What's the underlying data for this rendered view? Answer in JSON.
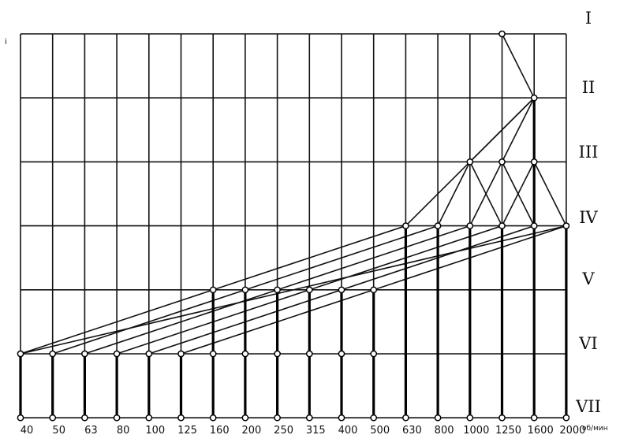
{
  "corner_mark": "i",
  "unit": "об/мин",
  "levels": [
    "I",
    "II",
    "III",
    "IV",
    "V",
    "VI",
    "VII"
  ],
  "speeds": [
    "40",
    "50",
    "63",
    "80",
    "100",
    "125",
    "160",
    "200",
    "250",
    "315",
    "400",
    "500",
    "630",
    "800",
    "1000",
    "1250",
    "1600",
    "2000"
  ],
  "nodes": [
    {
      "speed": 15,
      "level": 0
    },
    {
      "speed": 16,
      "level": 1
    },
    {
      "speed": 14,
      "level": 2
    },
    {
      "speed": 15,
      "level": 2
    },
    {
      "speed": 16,
      "level": 2
    },
    {
      "speed": 12,
      "level": 3
    },
    {
      "speed": 13,
      "level": 3
    },
    {
      "speed": 14,
      "level": 3
    },
    {
      "speed": 15,
      "level": 3
    },
    {
      "speed": 16,
      "level": 3
    },
    {
      "speed": 17,
      "level": 3
    },
    {
      "speed": 6,
      "level": 4
    },
    {
      "speed": 7,
      "level": 4
    },
    {
      "speed": 8,
      "level": 4
    },
    {
      "speed": 9,
      "level": 4
    },
    {
      "speed": 10,
      "level": 4
    },
    {
      "speed": 11,
      "level": 4
    },
    {
      "speed": 0,
      "level": 5
    },
    {
      "speed": 1,
      "level": 5
    },
    {
      "speed": 2,
      "level": 5
    },
    {
      "speed": 3,
      "level": 5
    },
    {
      "speed": 4,
      "level": 5
    },
    {
      "speed": 5,
      "level": 5
    },
    {
      "speed": 6,
      "level": 5
    },
    {
      "speed": 7,
      "level": 5
    },
    {
      "speed": 8,
      "level": 5
    },
    {
      "speed": 9,
      "level": 5
    },
    {
      "speed": 10,
      "level": 5
    },
    {
      "speed": 11,
      "level": 5
    }
  ],
  "rays": [
    {
      "from": {
        "speed": 15,
        "level": 0
      },
      "to": {
        "speed": 16,
        "level": 1
      }
    },
    {
      "from": {
        "speed": 16,
        "level": 1
      },
      "to": {
        "speed": 14,
        "level": 2
      }
    },
    {
      "from": {
        "speed": 16,
        "level": 1
      },
      "to": {
        "speed": 15,
        "level": 2
      }
    },
    {
      "from": {
        "speed": 16,
        "level": 1
      },
      "to": {
        "speed": 16,
        "level": 2
      }
    },
    {
      "from": {
        "speed": 16,
        "level": 1
      },
      "to": {
        "speed": 12,
        "level": 3
      }
    },
    {
      "from": {
        "speed": 14,
        "level": 2
      },
      "to": {
        "speed": 13,
        "level": 3
      }
    },
    {
      "from": {
        "speed": 14,
        "level": 2
      },
      "to": {
        "speed": 15,
        "level": 3
      }
    },
    {
      "from": {
        "speed": 15,
        "level": 2
      },
      "to": {
        "speed": 14,
        "level": 3
      }
    },
    {
      "from": {
        "speed": 15,
        "level": 2
      },
      "to": {
        "speed": 16,
        "level": 3
      }
    },
    {
      "from": {
        "speed": 16,
        "level": 2
      },
      "to": {
        "speed": 15,
        "level": 3
      }
    },
    {
      "from": {
        "speed": 16,
        "level": 2
      },
      "to": {
        "speed": 17,
        "level": 3
      }
    },
    {
      "from": {
        "speed": 12,
        "level": 3
      },
      "to": {
        "speed": 0,
        "level": 5
      }
    },
    {
      "from": {
        "speed": 13,
        "level": 3
      },
      "to": {
        "speed": 1,
        "level": 5
      }
    },
    {
      "from": {
        "speed": 14,
        "level": 3
      },
      "to": {
        "speed": 2,
        "level": 5
      }
    },
    {
      "from": {
        "speed": 15,
        "level": 3
      },
      "to": {
        "speed": 3,
        "level": 5
      }
    },
    {
      "from": {
        "speed": 16,
        "level": 3
      },
      "to": {
        "speed": 4,
        "level": 5
      }
    },
    {
      "from": {
        "speed": 17,
        "level": 3
      },
      "to": {
        "speed": 5,
        "level": 5
      }
    },
    {
      "from": {
        "speed": 17,
        "level": 3
      },
      "to": {
        "speed": 0,
        "level": 5
      }
    }
  ],
  "verticals": [
    {
      "speed": 0,
      "top": 5
    },
    {
      "speed": 1,
      "top": 5
    },
    {
      "speed": 2,
      "top": 5
    },
    {
      "speed": 3,
      "top": 5
    },
    {
      "speed": 4,
      "top": 5
    },
    {
      "speed": 5,
      "top": 5
    },
    {
      "speed": 6,
      "top": 4
    },
    {
      "speed": 7,
      "top": 4
    },
    {
      "speed": 8,
      "top": 4
    },
    {
      "speed": 9,
      "top": 4
    },
    {
      "speed": 10,
      "top": 4
    },
    {
      "speed": 11,
      "top": 4
    },
    {
      "speed": 12,
      "top": 3
    },
    {
      "speed": 13,
      "top": 3
    },
    {
      "speed": 14,
      "top": 3
    },
    {
      "speed": 15,
      "top": 3
    },
    {
      "speed": 16,
      "top": 1
    },
    {
      "speed": 17,
      "top": 3
    }
  ]
}
